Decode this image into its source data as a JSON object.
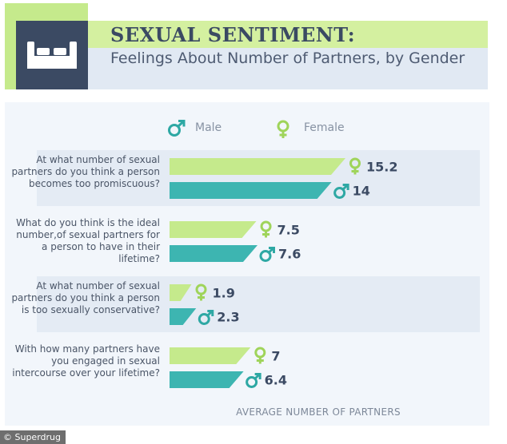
{
  "header": {
    "title": "SEXUAL SENTIMENT:",
    "subtitle": "Feelings About Number of Partners, by Gender",
    "icon": "bed-icon"
  },
  "legend": {
    "male_label": "Male",
    "female_label": "Female",
    "male_icon": "male-symbol-icon",
    "female_icon": "female-symbol-icon"
  },
  "colors": {
    "female": "#c5ea8c",
    "male": "#3db5b1",
    "navy": "#3b4a63",
    "female_symbol": "#9fd45a",
    "male_symbol": "#2ea8a4"
  },
  "chart_data": {
    "type": "bar",
    "title": "Feelings About Number of Partners, by Gender",
    "xlabel": "AVERAGE NUMBER OF PARTNERS",
    "ylabel": "",
    "xlim": [
      0,
      15.2
    ],
    "categories": [
      "At what number of sexual partners do you think a person becomes too promiscuous?",
      "What do you think is the ideal number,of sexual partners for a person to have in their lifetime?",
      "At what number of sexual partners do you think a person is too sexually conservative?",
      "With how many partners have you engaged in sexual intercourse over your lifetime?"
    ],
    "series": [
      {
        "name": "Female",
        "values": [
          15.2,
          7.5,
          1.9,
          7
        ],
        "labels": [
          "15.2",
          "7.5",
          "1.9",
          "7"
        ]
      },
      {
        "name": "Male",
        "values": [
          14,
          7.6,
          2.3,
          6.4
        ],
        "labels": [
          "14",
          "7.6",
          "2.3",
          "6.4"
        ]
      }
    ]
  },
  "footer": {
    "credit": "© Superdrug"
  }
}
